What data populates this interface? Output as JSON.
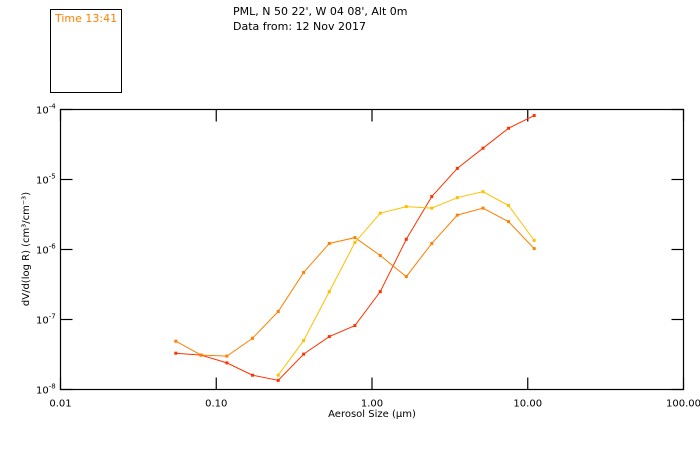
{
  "header": {
    "time_label": "Time 13:41",
    "location": "PML, N 50 22', W 04 08', Alt 0m",
    "date": "Data from: 12 Nov 2017"
  },
  "chart_data": {
    "type": "line",
    "title": "",
    "xlabel": "Aerosol Size (μm)",
    "ylabel": "dV/d(log R) (cm³/cm⁻³)",
    "xscale": "log",
    "yscale": "log",
    "xlim": [
      0.01,
      100
    ],
    "ylim": [
      1e-08,
      0.0001
    ],
    "xticks": [
      {
        "value": 0.01,
        "label": "0.01"
      },
      {
        "value": 0.1,
        "label": "0.10"
      },
      {
        "value": 1,
        "label": "1.00"
      },
      {
        "value": 10,
        "label": "10.00"
      },
      {
        "value": 100,
        "label": "100.00"
      }
    ],
    "yticks": [
      {
        "value": 0.0001,
        "base": "10",
        "exp": "-4"
      },
      {
        "value": 1e-05,
        "base": "10",
        "exp": "-5"
      },
      {
        "value": 1e-06,
        "base": "10",
        "exp": "-6"
      },
      {
        "value": 1e-07,
        "base": "10",
        "exp": "-7"
      },
      {
        "value": 1e-08,
        "base": "10",
        "exp": "-8"
      }
    ],
    "grid": false,
    "x": [
      0.055,
      0.08,
      0.117,
      0.171,
      0.25,
      0.364,
      0.532,
      0.777,
      1.13,
      1.66,
      2.42,
      3.53,
      5.16,
      7.53,
      11.0
    ],
    "series": [
      {
        "name": "red",
        "color": "#ff3300",
        "values": [
          3.3e-08,
          3.1e-08,
          2.4e-08,
          1.6e-08,
          1.35e-08,
          3.2e-08,
          5.7e-08,
          8.2e-08,
          2.5e-07,
          1.4e-06,
          5.7e-06,
          1.44e-05,
          2.8e-05,
          5.4e-05,
          8.2e-05
        ]
      },
      {
        "name": "orange",
        "color": "#ff7f00",
        "values": [
          4.9e-08,
          3.1e-08,
          3e-08,
          5.4e-08,
          1.3e-07,
          4.7e-07,
          1.22e-06,
          1.48e-06,
          8.2e-07,
          4.1e-07,
          1.22e-06,
          3.1e-06,
          3.9e-06,
          2.5e-06,
          1.03e-06
        ]
      },
      {
        "name": "yellow",
        "color": "#ffbf00",
        "values": [
          null,
          null,
          null,
          null,
          1.6e-08,
          5e-08,
          2.5e-07,
          1.26e-06,
          3.3e-06,
          4.1e-06,
          3.9e-06,
          5.5e-06,
          6.7e-06,
          4.25e-06,
          1.35e-06
        ]
      }
    ]
  }
}
